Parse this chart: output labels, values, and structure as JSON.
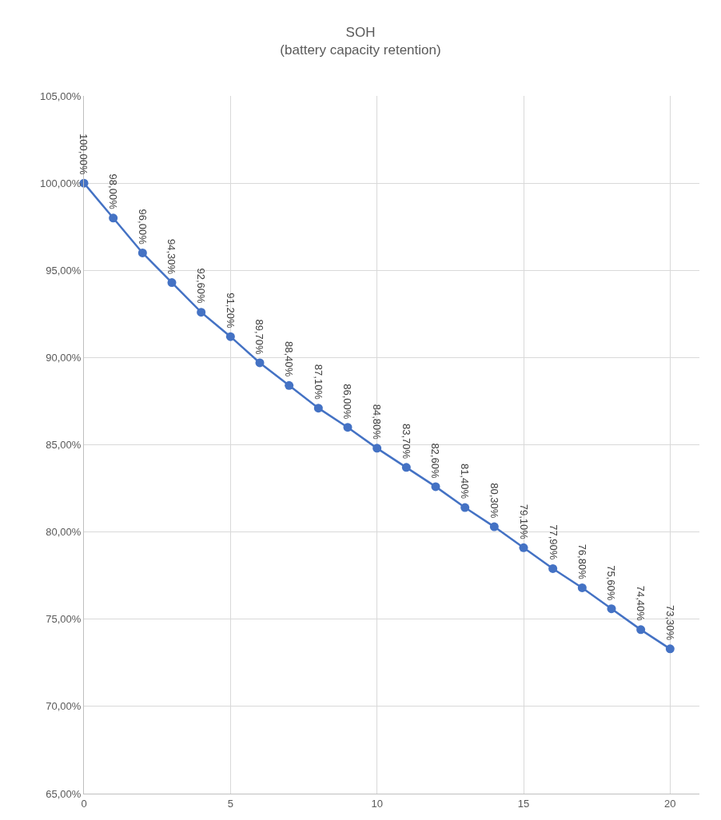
{
  "chart_data": {
    "type": "line",
    "title": "SOH\n(battery capacity retention)",
    "x": [
      0,
      1,
      2,
      3,
      4,
      5,
      6,
      7,
      8,
      9,
      10,
      11,
      12,
      13,
      14,
      15,
      16,
      17,
      18,
      19,
      20
    ],
    "series": [
      {
        "color": "#4472c4",
        "values": [
          100,
          98,
          96,
          94.3,
          92.6,
          91.2,
          89.7,
          88.4,
          87.1,
          86.0,
          84.8,
          83.7,
          82.6,
          81.4,
          80.3,
          79.1,
          77.9,
          76.8,
          75.6,
          74.4,
          73.3
        ],
        "value_labels": [
          "100,00%",
          "98,00%",
          "96,00%",
          "94,30%",
          "92,60%",
          "91,20%",
          "89,70%",
          "88,40%",
          "87,10%",
          "86,00%",
          "84,80%",
          "83,70%",
          "82,60%",
          "81,40%",
          "80,30%",
          "79,10%",
          "77,90%",
          "76,80%",
          "75,60%",
          "74,40%",
          "73,30%"
        ]
      }
    ],
    "xlim": [
      0,
      21
    ],
    "xticks": [
      0,
      5,
      10,
      15,
      20
    ],
    "ylim": [
      65,
      105
    ],
    "yticks": [
      {
        "value": 65,
        "label": "65,00%"
      },
      {
        "value": 70,
        "label": "70,00%"
      },
      {
        "value": 75,
        "label": "75,00%"
      },
      {
        "value": 80,
        "label": "80,00%"
      },
      {
        "value": 85,
        "label": "85,00%"
      },
      {
        "value": 90,
        "label": "90,00%"
      },
      {
        "value": 95,
        "label": "95,00%"
      },
      {
        "value": 100,
        "label": "100,00%"
      },
      {
        "value": 105,
        "label": "105,00%"
      }
    ],
    "grid": true,
    "marker": "circle",
    "line_style": "solid"
  }
}
